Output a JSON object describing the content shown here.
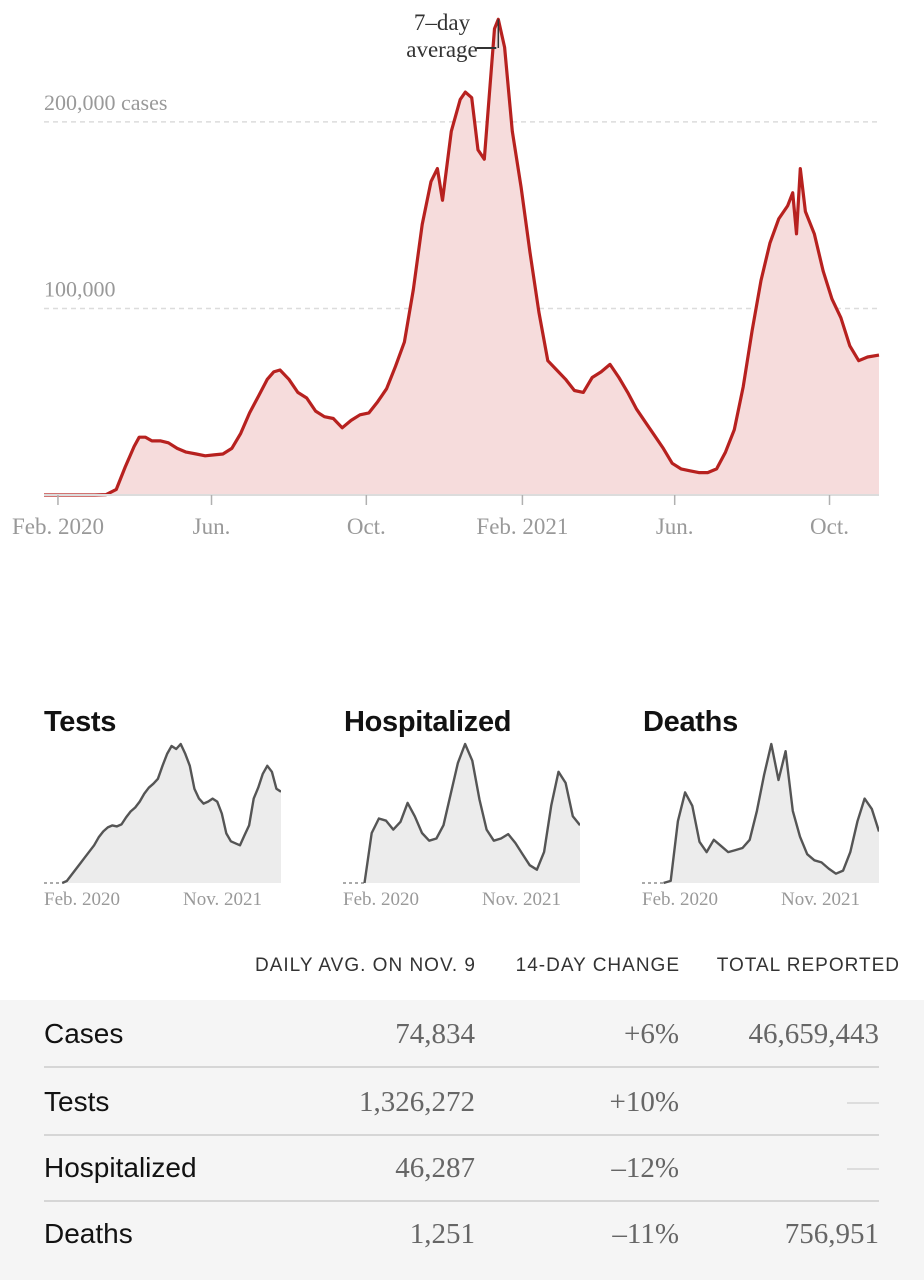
{
  "chart_data": [
    {
      "type": "area",
      "title": "",
      "ylabel": "",
      "y_tick_labels": [
        "200,000 cases",
        "100,000"
      ],
      "y_ticks": [
        200000,
        100000
      ],
      "ylim": [
        0,
        260000
      ],
      "x_tick_labels": [
        "Feb. 2020",
        "Jun.",
        "Oct.",
        "Feb. 2021",
        "Jun.",
        "Oct."
      ],
      "x_ticks": [
        "2020-02-01",
        "2020-06-01",
        "2020-10-01",
        "2021-02-01",
        "2021-06-01",
        "2021-10-01"
      ],
      "xlim": [
        "2020-01-21",
        "2021-11-09"
      ],
      "annotation": "7–day average",
      "annotation_line1": "7–day",
      "annotation_line2": "average",
      "grid": true,
      "series": [
        {
          "color": "#b7211f",
          "fill": "#f6dcdc",
          "points": [
            [
              "2020-01-21",
              0
            ],
            [
              "2020-02-15",
              0
            ],
            [
              "2020-03-01",
              0
            ],
            [
              "2020-03-10",
              200
            ],
            [
              "2020-03-18",
              3000
            ],
            [
              "2020-03-25",
              15000
            ],
            [
              "2020-04-01",
              26000
            ],
            [
              "2020-04-05",
              31000
            ],
            [
              "2020-04-10",
              31000
            ],
            [
              "2020-04-15",
              29000
            ],
            [
              "2020-04-22",
              29000
            ],
            [
              "2020-04-28",
              28000
            ],
            [
              "2020-05-05",
              25000
            ],
            [
              "2020-05-12",
              23000
            ],
            [
              "2020-05-20",
              22000
            ],
            [
              "2020-05-27",
              21000
            ],
            [
              "2020-06-03",
              21500
            ],
            [
              "2020-06-10",
              22000
            ],
            [
              "2020-06-17",
              25000
            ],
            [
              "2020-06-24",
              33000
            ],
            [
              "2020-07-01",
              44000
            ],
            [
              "2020-07-08",
              53000
            ],
            [
              "2020-07-15",
              62000
            ],
            [
              "2020-07-20",
              66000
            ],
            [
              "2020-07-25",
              67000
            ],
            [
              "2020-08-01",
              62000
            ],
            [
              "2020-08-08",
              55000
            ],
            [
              "2020-08-15",
              52000
            ],
            [
              "2020-08-22",
              45000
            ],
            [
              "2020-08-29",
              42000
            ],
            [
              "2020-09-05",
              41000
            ],
            [
              "2020-09-12",
              36000
            ],
            [
              "2020-09-19",
              40000
            ],
            [
              "2020-09-26",
              43000
            ],
            [
              "2020-10-03",
              44000
            ],
            [
              "2020-10-10",
              50000
            ],
            [
              "2020-10-17",
              57000
            ],
            [
              "2020-10-24",
              69000
            ],
            [
              "2020-10-31",
              82000
            ],
            [
              "2020-11-07",
              110000
            ],
            [
              "2020-11-14",
              145000
            ],
            [
              "2020-11-21",
              168000
            ],
            [
              "2020-11-26",
              175000
            ],
            [
              "2020-11-30",
              158000
            ],
            [
              "2020-12-07",
              195000
            ],
            [
              "2020-12-14",
              212000
            ],
            [
              "2020-12-18",
              216000
            ],
            [
              "2020-12-23",
              213000
            ],
            [
              "2020-12-28",
              185000
            ],
            [
              "2021-01-02",
              180000
            ],
            [
              "2021-01-06",
              215000
            ],
            [
              "2021-01-10",
              250000
            ],
            [
              "2021-01-13",
              255000
            ],
            [
              "2021-01-18",
              240000
            ],
            [
              "2021-01-24",
              195000
            ],
            [
              "2021-01-31",
              165000
            ],
            [
              "2021-02-07",
              130000
            ],
            [
              "2021-02-14",
              98000
            ],
            [
              "2021-02-21",
              72000
            ],
            [
              "2021-02-28",
              67000
            ],
            [
              "2021-03-07",
              62000
            ],
            [
              "2021-03-14",
              56000
            ],
            [
              "2021-03-21",
              55000
            ],
            [
              "2021-03-28",
              63000
            ],
            [
              "2021-04-04",
              66000
            ],
            [
              "2021-04-11",
              70000
            ],
            [
              "2021-04-18",
              63000
            ],
            [
              "2021-04-25",
              55000
            ],
            [
              "2021-05-02",
              46000
            ],
            [
              "2021-05-09",
              39000
            ],
            [
              "2021-05-16",
              32000
            ],
            [
              "2021-05-23",
              25000
            ],
            [
              "2021-05-30",
              17000
            ],
            [
              "2021-06-06",
              14000
            ],
            [
              "2021-06-13",
              13000
            ],
            [
              "2021-06-20",
              12000
            ],
            [
              "2021-06-27",
              12000
            ],
            [
              "2021-07-04",
              14000
            ],
            [
              "2021-07-11",
              23000
            ],
            [
              "2021-07-18",
              35000
            ],
            [
              "2021-07-25",
              58000
            ],
            [
              "2021-08-01",
              88000
            ],
            [
              "2021-08-08",
              115000
            ],
            [
              "2021-08-15",
              135000
            ],
            [
              "2021-08-22",
              148000
            ],
            [
              "2021-08-29",
              155000
            ],
            [
              "2021-09-02",
              162000
            ],
            [
              "2021-09-05",
              140000
            ],
            [
              "2021-09-08",
              175000
            ],
            [
              "2021-09-12",
              152000
            ],
            [
              "2021-09-19",
              140000
            ],
            [
              "2021-09-26",
              120000
            ],
            [
              "2021-10-03",
              105000
            ],
            [
              "2021-10-10",
              95000
            ],
            [
              "2021-10-17",
              80000
            ],
            [
              "2021-10-24",
              72000
            ],
            [
              "2021-10-31",
              74000
            ],
            [
              "2021-11-09",
              75000
            ]
          ]
        }
      ]
    },
    {
      "type": "area",
      "title": "Tests",
      "x_tick_labels": [
        "Feb. 2020",
        "Nov. 2021"
      ],
      "series": [
        {
          "color": "#555555",
          "values": [
            0,
            0,
            0,
            0,
            0,
            2,
            8,
            14,
            20,
            26,
            32,
            38,
            46,
            52,
            56,
            58,
            57,
            59,
            66,
            72,
            76,
            82,
            90,
            96,
            100,
            105,
            118,
            130,
            138,
            135,
            140,
            130,
            118,
            95,
            85,
            80,
            82,
            85,
            82,
            70,
            50,
            42,
            40,
            38,
            48,
            58,
            85,
            96,
            110,
            118,
            112,
            95,
            92
          ]
        }
      ]
    },
    {
      "type": "area",
      "title": "Hospitalized",
      "x_tick_labels": [
        "Feb. 2020",
        "Nov. 2021"
      ],
      "series": [
        {
          "color": "#555555",
          "values": [
            0,
            0,
            0,
            0,
            45,
            58,
            56,
            48,
            55,
            72,
            60,
            45,
            38,
            40,
            52,
            80,
            108,
            125,
            110,
            75,
            48,
            38,
            40,
            44,
            36,
            26,
            16,
            12,
            28,
            70,
            100,
            90,
            60,
            52
          ]
        }
      ]
    },
    {
      "type": "area",
      "title": "Deaths",
      "x_tick_labels": [
        "Feb. 2020",
        "Nov. 2021"
      ],
      "series": [
        {
          "color": "#555555",
          "values": [
            0,
            0,
            0,
            0,
            2,
            60,
            88,
            75,
            40,
            30,
            42,
            36,
            30,
            32,
            34,
            42,
            70,
            105,
            135,
            100,
            128,
            70,
            45,
            28,
            22,
            20,
            14,
            9,
            12,
            30,
            60,
            82,
            72,
            50
          ]
        }
      ]
    }
  ],
  "table": {
    "headers": {
      "avg": "DAILY AVG. ON NOV. 9",
      "change": "14-DAY CHANGE",
      "total": "TOTAL REPORTED"
    },
    "rows": [
      {
        "name": "Cases",
        "avg": "74,834",
        "change": "+6%",
        "total": "46,659,443"
      },
      {
        "name": "Tests",
        "avg": "1,326,272",
        "change": "+10%",
        "total": ""
      },
      {
        "name": "Hospitalized",
        "avg": "46,287",
        "change": "–12%",
        "total": ""
      },
      {
        "name": "Deaths",
        "avg": "1,251",
        "change": "–11%",
        "total": "756,951"
      }
    ]
  }
}
